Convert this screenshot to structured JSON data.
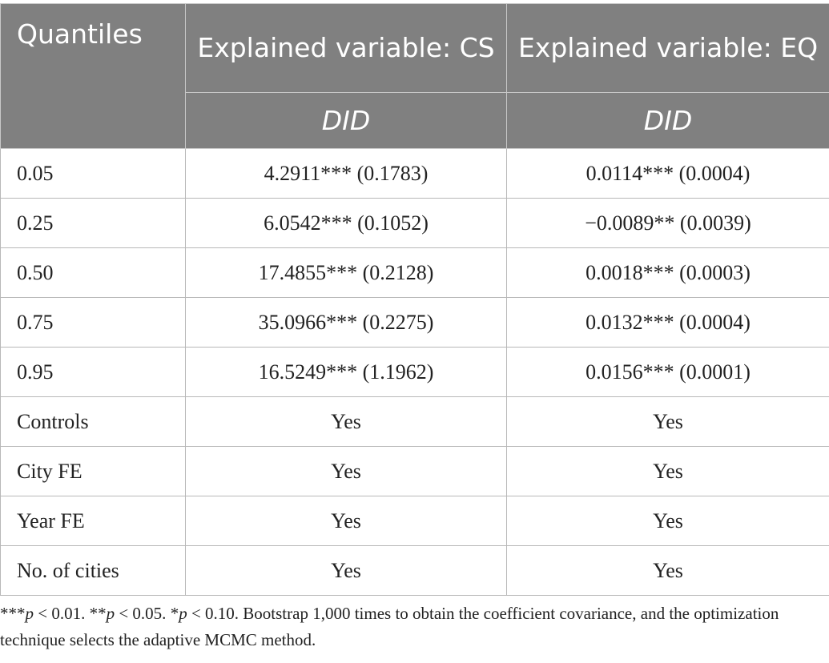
{
  "header": {
    "quantiles": "Quantiles",
    "col_cs": "Explained variable: CS",
    "col_eq": "Explained variable: EQ",
    "did_cs": "DID",
    "did_eq": "DID"
  },
  "rows": [
    {
      "label": "0.05",
      "cs": "4.2911*** (0.1783)",
      "eq": "0.0114*** (0.0004)"
    },
    {
      "label": "0.25",
      "cs": "6.0542*** (0.1052)",
      "eq": "−0.0089** (0.0039)"
    },
    {
      "label": "0.50",
      "cs": "17.4855*** (0.2128)",
      "eq": "0.0018*** (0.0003)"
    },
    {
      "label": "0.75",
      "cs": "35.0966*** (0.2275)",
      "eq": "0.0132*** (0.0004)"
    },
    {
      "label": "0.95",
      "cs": "16.5249*** (1.1962)",
      "eq": "0.0156*** (0.0001)"
    },
    {
      "label": "Controls",
      "cs": "Yes",
      "eq": "Yes"
    },
    {
      "label": "City FE",
      "cs": "Yes",
      "eq": "Yes"
    },
    {
      "label": "Year FE",
      "cs": "Yes",
      "eq": "Yes"
    },
    {
      "label": "No. of cities",
      "cs": "Yes",
      "eq": "Yes"
    }
  ],
  "footnote": {
    "p1_stars": "***",
    "p1_var": "p",
    "p1_rest": " < 0.01. ",
    "p2_stars": "**",
    "p2_var": "p",
    "p2_rest": " < 0.05. ",
    "p3_stars": "*",
    "p3_var": "p",
    "p3_rest": " < 0.10. Bootstrap 1,000 times to obtain the coefficient covariance, and the optimization technique selects the adaptive MCMC method."
  }
}
